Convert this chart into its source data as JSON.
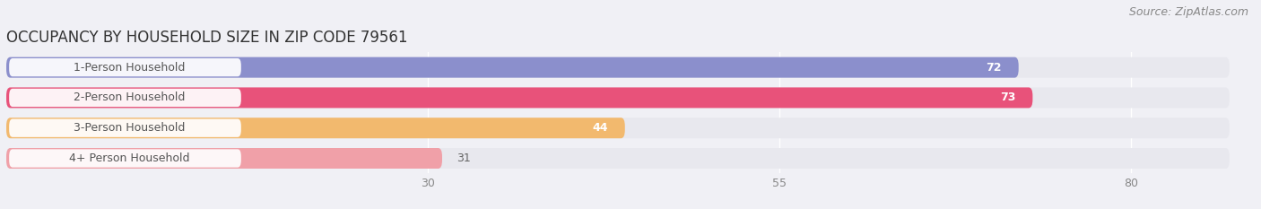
{
  "title": "OCCUPANCY BY HOUSEHOLD SIZE IN ZIP CODE 79561",
  "source": "Source: ZipAtlas.com",
  "categories": [
    "1-Person Household",
    "2-Person Household",
    "3-Person Household",
    "4+ Person Household"
  ],
  "values": [
    72,
    73,
    44,
    31
  ],
  "bar_colors": [
    "#8b8fcc",
    "#e8527a",
    "#f2b96e",
    "#f0a0a8"
  ],
  "bar_height": 0.68,
  "xlim": [
    0,
    87
  ],
  "xticks": [
    30,
    55,
    80
  ],
  "background_color": "#f0f0f5",
  "row_bg_color": "#e8e8ee",
  "title_fontsize": 12,
  "source_fontsize": 9,
  "label_fontsize": 9,
  "value_fontsize": 9
}
